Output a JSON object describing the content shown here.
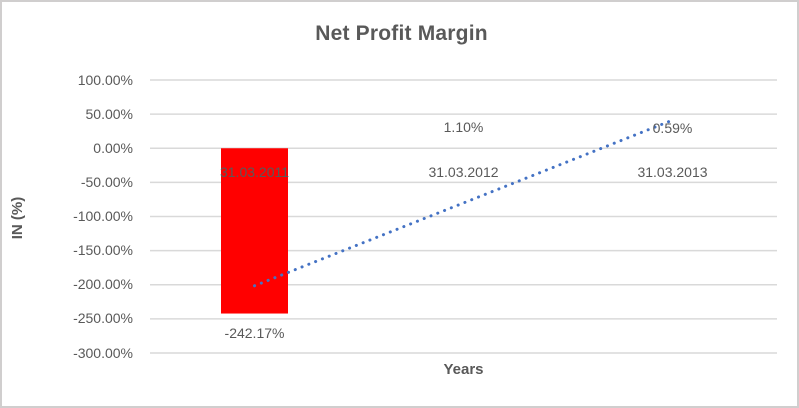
{
  "chart_data": {
    "type": "bar",
    "title": "Net Profit Margin",
    "xlabel": "Years",
    "ylabel": "IN (%)",
    "categories": [
      "31.03.2011",
      "31.03.2012",
      "31.03.2013"
    ],
    "series": [
      {
        "name": "Net Profit Margin",
        "values": [
          -242.17,
          1.1,
          0.59
        ]
      }
    ],
    "data_labels": [
      "-242.17%",
      "1.10%",
      "0.59%"
    ],
    "yticks": {
      "labels": [
        "100.00%",
        "50.00%",
        "0.00%",
        "-50.00%",
        "-100.00%",
        "-150.00%",
        "-200.00%",
        "-250.00%",
        "-300.00%"
      ],
      "values": [
        100,
        50,
        0,
        -50,
        -100,
        -150,
        -200,
        -250,
        -300
      ]
    },
    "ylim": [
      -300,
      100
    ],
    "grid": true,
    "legend": false,
    "trendline": {
      "type": "linear",
      "style": "dotted",
      "start_value": -201.5,
      "end_value": 41.2
    },
    "colors": {
      "bar": "#ff0000",
      "trendline": "#4472c4",
      "gridline": "#d9d9d9",
      "text": "#595959",
      "border": "#d0cece"
    }
  }
}
